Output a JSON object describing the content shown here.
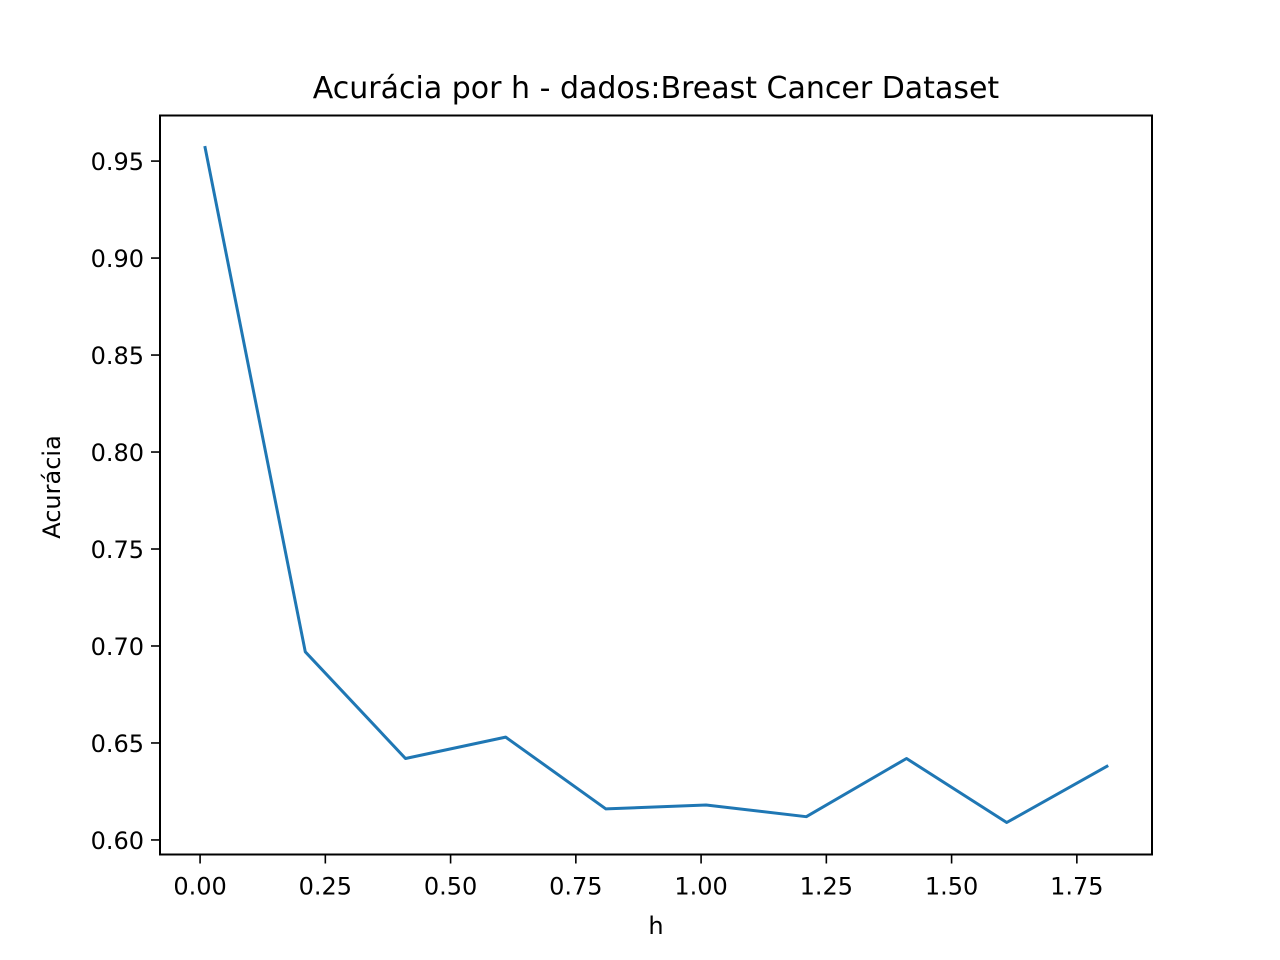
{
  "chart_data": {
    "type": "line",
    "title": "Acurácia por h - dados:Breast Cancer Dataset",
    "xlabel": "h",
    "ylabel": "Acurácia",
    "xlim": [
      -0.08,
      1.9
    ],
    "ylim": [
      0.5925,
      0.9735
    ],
    "xticks": [
      0.0,
      0.25,
      0.5,
      0.75,
      1.0,
      1.25,
      1.5,
      1.75
    ],
    "xtick_labels": [
      "0.00",
      "0.25",
      "0.50",
      "0.75",
      "1.00",
      "1.25",
      "1.50",
      "1.75"
    ],
    "yticks": [
      0.6,
      0.65,
      0.7,
      0.75,
      0.8,
      0.85,
      0.9,
      0.95
    ],
    "ytick_labels": [
      "0.60",
      "0.65",
      "0.70",
      "0.75",
      "0.80",
      "0.85",
      "0.90",
      "0.95"
    ],
    "grid": false,
    "series": [
      {
        "color": "#1f77b4",
        "x": [
          0.01,
          0.21,
          0.41,
          0.61,
          0.81,
          1.01,
          1.21,
          1.41,
          1.61,
          1.81
        ],
        "y": [
          0.957,
          0.697,
          0.642,
          0.653,
          0.616,
          0.618,
          0.612,
          0.642,
          0.609,
          0.638
        ]
      }
    ]
  }
}
